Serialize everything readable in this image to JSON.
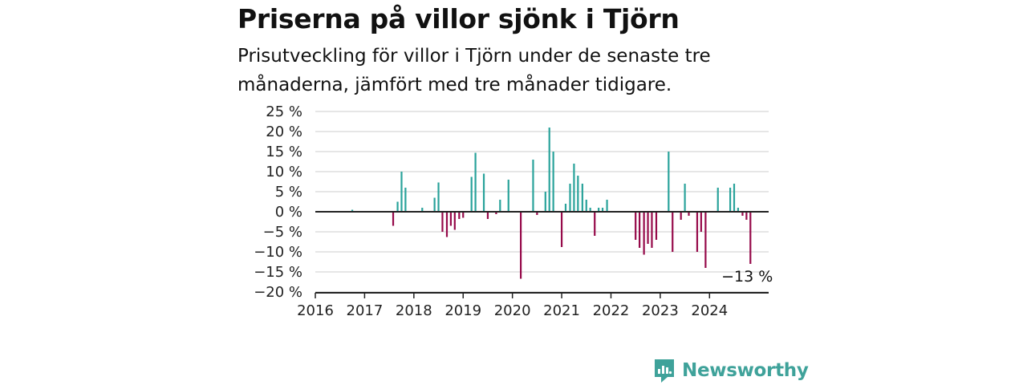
{
  "title": "Priserna på villor sjönk i Tjörn",
  "subtitle": "Prisutveckling för villor i Tjörn under de senaste tre månaderna, jämfört med tre månader tidigare.",
  "brand": {
    "name": "Newsworthy",
    "icon": "newsworthy-logo-icon"
  },
  "colors": {
    "positive": "#2aa39b",
    "negative": "#960a4a",
    "grid": "#dddddd",
    "zero": "#222222"
  },
  "chart_data": {
    "type": "bar",
    "title": "Priserna på villor sjönk i Tjörn",
    "subtitle": "Prisutveckling för villor i Tjörn under de senaste tre månaderna, jämfört med tre månader tidigare.",
    "x_unit": "year",
    "xlim": [
      2016,
      2025.2
    ],
    "ylim": [
      -20,
      25
    ],
    "y_ticks": [
      25,
      20,
      15,
      10,
      5,
      0,
      -5,
      -10,
      -15,
      -20
    ],
    "y_tick_labels": [
      "25 %",
      "20 %",
      "15 %",
      "10 %",
      "5 %",
      "0 %",
      "−5 %",
      "−10 %",
      "−15 %",
      "−20 %"
    ],
    "x_ticks": [
      2016,
      2017,
      2018,
      2019,
      2020,
      2021,
      2022,
      2023,
      2024
    ],
    "x_tick_labels": [
      "2016",
      "2017",
      "2018",
      "2019",
      "2020",
      "2021",
      "2022",
      "2023",
      "2024"
    ],
    "grid": true,
    "annotation": {
      "x": 2024.83,
      "y": -13,
      "text": "−13 %"
    },
    "x": [
      2016.75,
      2017.58,
      2017.67,
      2017.75,
      2017.83,
      2018.17,
      2018.42,
      2018.5,
      2018.58,
      2018.67,
      2018.75,
      2018.83,
      2018.92,
      2019.0,
      2019.17,
      2019.25,
      2019.42,
      2019.5,
      2019.67,
      2019.75,
      2019.92,
      2020.17,
      2020.42,
      2020.5,
      2020.67,
      2020.75,
      2020.83,
      2021.0,
      2021.08,
      2021.17,
      2021.25,
      2021.33,
      2021.42,
      2021.5,
      2021.58,
      2021.67,
      2021.75,
      2021.83,
      2021.92,
      2022.5,
      2022.58,
      2022.67,
      2022.75,
      2022.83,
      2022.92,
      2023.17,
      2023.25,
      2023.42,
      2023.5,
      2023.58,
      2023.75,
      2023.83,
      2023.92,
      2024.17,
      2024.42,
      2024.5,
      2024.58,
      2024.67,
      2024.75,
      2024.83
    ],
    "values": [
      0.5,
      -3.5,
      2.5,
      10,
      6,
      1,
      3.5,
      7.3,
      -5,
      -6.3,
      -3.5,
      -4.5,
      -1.8,
      -1.5,
      8.7,
      14.7,
      9.5,
      -1.8,
      -0.6,
      3,
      8,
      -16.7,
      13,
      -0.8,
      5,
      21,
      15,
      -8.8,
      2,
      7,
      12,
      9,
      7,
      3,
      1,
      -6,
      1,
      1,
      3,
      -7,
      -9,
      -10.7,
      -8,
      -9,
      -7,
      15,
      -10,
      -2,
      7,
      -1,
      -10,
      -5,
      -14,
      6,
      6,
      7,
      1,
      -1,
      -2,
      -13
    ]
  }
}
